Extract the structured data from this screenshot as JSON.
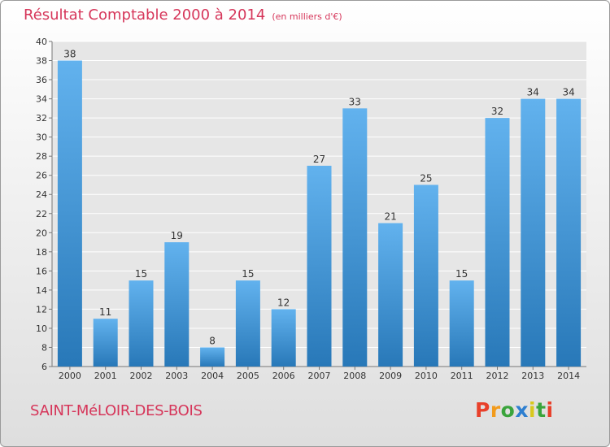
{
  "header": {
    "title": "Résultat Comptable 2000 à 2014",
    "unit": "(en milliers d'€)"
  },
  "footer": {
    "commune": "SAINT-MéLOIR-DES-BOIS",
    "logo": "Proxiti"
  },
  "colors": {
    "title": "#d6365a",
    "bar_light": "#62b2ee",
    "bar_dark": "#2878b8",
    "logo_letters": [
      "#e8402a",
      "#f29b1c",
      "#3aa43c",
      "#2e7fd0",
      "#d8c81e",
      "#3aa43c",
      "#e8402a"
    ]
  },
  "chart_data": {
    "type": "bar",
    "title": "Résultat Comptable 2000 à 2014",
    "ylabel": "(en milliers d'€)",
    "xlabel": "",
    "categories": [
      "2000",
      "2001",
      "2002",
      "2003",
      "2004",
      "2005",
      "2006",
      "2007",
      "2008",
      "2009",
      "2010",
      "2011",
      "2012",
      "2013",
      "2014"
    ],
    "values": [
      38,
      11,
      15,
      19,
      8,
      15,
      12,
      27,
      33,
      21,
      25,
      15,
      32,
      34,
      34
    ],
    "ylim": [
      6,
      40
    ],
    "ytick_step": 2,
    "grid": true
  }
}
